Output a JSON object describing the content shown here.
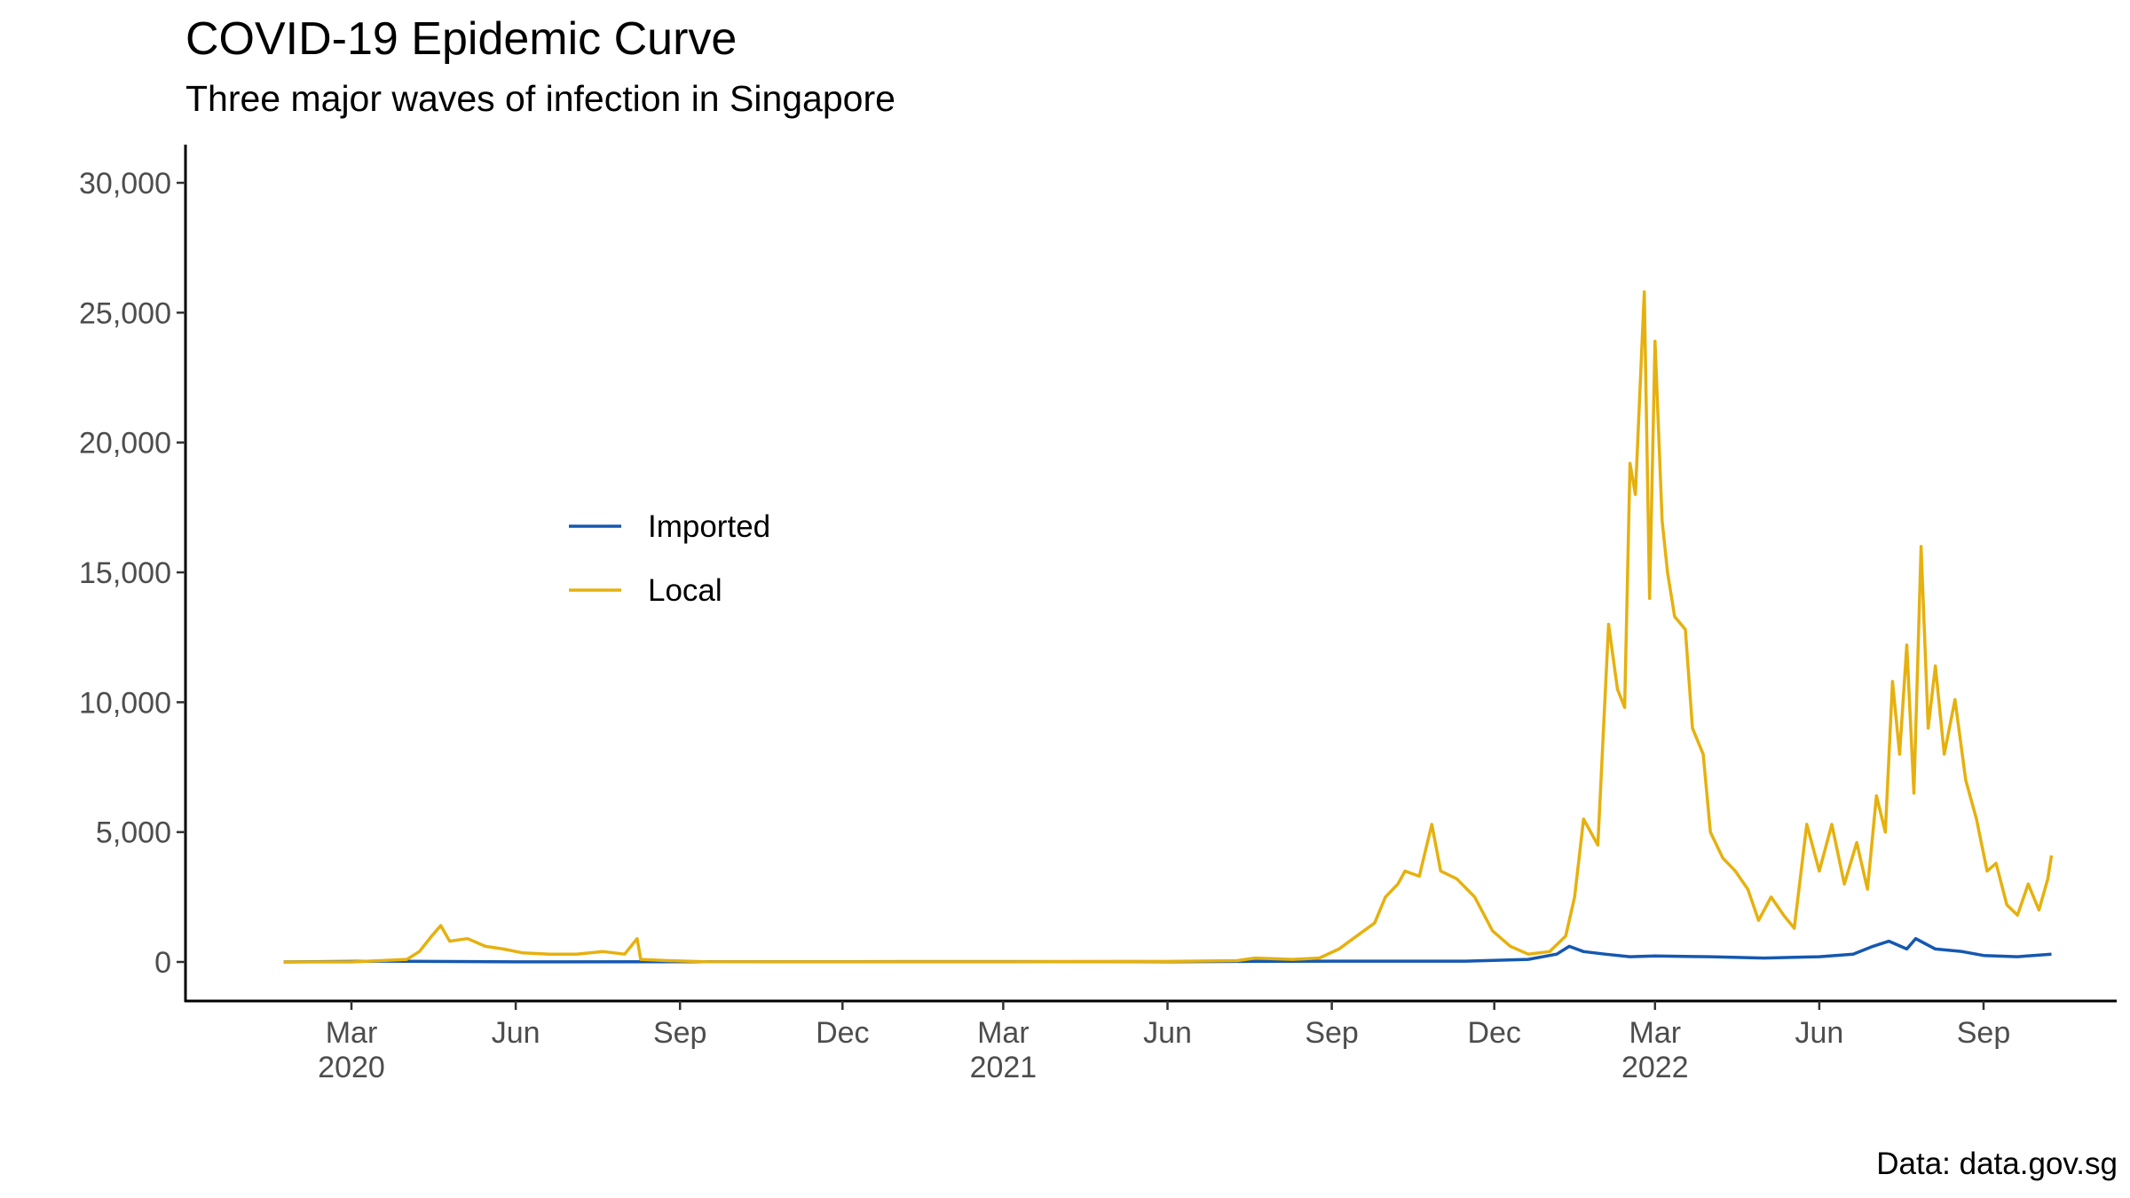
{
  "chart_data": {
    "type": "line",
    "title": "COVID-19 Epidemic Curve",
    "subtitle": "Three major waves of infection in Singapore",
    "caption": "Data: data.gov.sg",
    "xlabel": "",
    "ylabel": "",
    "ylim": [
      0,
      30000
    ],
    "xlim": [
      "2020-01-01",
      "2022-11-01"
    ],
    "grid": false,
    "legend_position": "inside-left",
    "y_ticks": [
      {
        "value": 0,
        "label": "0"
      },
      {
        "value": 5000,
        "label": "5,000"
      },
      {
        "value": 10000,
        "label": "10,000"
      },
      {
        "value": 15000,
        "label": "15,000"
      },
      {
        "value": 20000,
        "label": "20,000"
      },
      {
        "value": 25000,
        "label": "25,000"
      },
      {
        "value": 30000,
        "label": "30,000"
      }
    ],
    "x_ticks": [
      {
        "date": "2020-03-01",
        "month": "Mar",
        "year": "2020"
      },
      {
        "date": "2020-06-01",
        "month": "Jun",
        "year": ""
      },
      {
        "date": "2020-09-01",
        "month": "Sep",
        "year": ""
      },
      {
        "date": "2020-12-01",
        "month": "Dec",
        "year": ""
      },
      {
        "date": "2021-03-01",
        "month": "Mar",
        "year": "2021"
      },
      {
        "date": "2021-06-01",
        "month": "Jun",
        "year": ""
      },
      {
        "date": "2021-09-01",
        "month": "Sep",
        "year": ""
      },
      {
        "date": "2021-12-01",
        "month": "Dec",
        "year": ""
      },
      {
        "date": "2022-03-01",
        "month": "Mar",
        "year": "2022"
      },
      {
        "date": "2022-06-01",
        "month": "Jun",
        "year": ""
      },
      {
        "date": "2022-09-01",
        "month": "Sep",
        "year": ""
      }
    ],
    "series": [
      {
        "name": "Imported",
        "color": "#1558b0",
        "points": [
          [
            "2020-01-23",
            0
          ],
          [
            "2020-03-20",
            30
          ],
          [
            "2020-06-01",
            5
          ],
          [
            "2020-09-01",
            10
          ],
          [
            "2020-12-01",
            10
          ],
          [
            "2021-03-01",
            15
          ],
          [
            "2021-06-01",
            10
          ],
          [
            "2021-09-01",
            30
          ],
          [
            "2021-11-15",
            30
          ],
          [
            "2021-12-20",
            100
          ],
          [
            "2022-01-05",
            300
          ],
          [
            "2022-01-12",
            600
          ],
          [
            "2022-01-20",
            400
          ],
          [
            "2022-02-01",
            300
          ],
          [
            "2022-02-15",
            200
          ],
          [
            "2022-03-01",
            230
          ],
          [
            "2022-04-01",
            200
          ],
          [
            "2022-05-01",
            150
          ],
          [
            "2022-06-01",
            200
          ],
          [
            "2022-06-20",
            300
          ],
          [
            "2022-07-01",
            600
          ],
          [
            "2022-07-10",
            800
          ],
          [
            "2022-07-20",
            500
          ],
          [
            "2022-07-25",
            900
          ],
          [
            "2022-08-05",
            500
          ],
          [
            "2022-08-20",
            400
          ],
          [
            "2022-09-01",
            250
          ],
          [
            "2022-09-20",
            200
          ],
          [
            "2022-10-09",
            300
          ]
        ]
      },
      {
        "name": "Local",
        "color": "#e6b10e",
        "points": [
          [
            "2020-01-23",
            0
          ],
          [
            "2020-03-01",
            0
          ],
          [
            "2020-04-01",
            100
          ],
          [
            "2020-04-08",
            400
          ],
          [
            "2020-04-15",
            1000
          ],
          [
            "2020-04-20",
            1400
          ],
          [
            "2020-04-25",
            800
          ],
          [
            "2020-05-05",
            900
          ],
          [
            "2020-05-15",
            600
          ],
          [
            "2020-05-25",
            500
          ],
          [
            "2020-06-05",
            350
          ],
          [
            "2020-06-20",
            300
          ],
          [
            "2020-07-05",
            300
          ],
          [
            "2020-07-20",
            400
          ],
          [
            "2020-08-01",
            300
          ],
          [
            "2020-08-08",
            900
          ],
          [
            "2020-08-10",
            100
          ],
          [
            "2020-08-25",
            50
          ],
          [
            "2020-09-15",
            10
          ],
          [
            "2020-12-01",
            5
          ],
          [
            "2021-03-01",
            5
          ],
          [
            "2021-06-01",
            20
          ],
          [
            "2021-07-10",
            50
          ],
          [
            "2021-07-20",
            150
          ],
          [
            "2021-08-10",
            100
          ],
          [
            "2021-08-25",
            150
          ],
          [
            "2021-09-05",
            500
          ],
          [
            "2021-09-15",
            1000
          ],
          [
            "2021-09-25",
            1500
          ],
          [
            "2021-10-01",
            2500
          ],
          [
            "2021-10-08",
            3000
          ],
          [
            "2021-10-12",
            3500
          ],
          [
            "2021-10-20",
            3300
          ],
          [
            "2021-10-27",
            5300
          ],
          [
            "2021-11-01",
            3500
          ],
          [
            "2021-11-10",
            3200
          ],
          [
            "2021-11-20",
            2500
          ],
          [
            "2021-11-30",
            1200
          ],
          [
            "2021-12-10",
            600
          ],
          [
            "2021-12-20",
            300
          ],
          [
            "2022-01-01",
            400
          ],
          [
            "2022-01-10",
            1000
          ],
          [
            "2022-01-15",
            2500
          ],
          [
            "2022-01-20",
            5500
          ],
          [
            "2022-01-28",
            4500
          ],
          [
            "2022-02-03",
            13000
          ],
          [
            "2022-02-08",
            10500
          ],
          [
            "2022-02-12",
            9800
          ],
          [
            "2022-02-15",
            19200
          ],
          [
            "2022-02-18",
            18000
          ],
          [
            "2022-02-23",
            25800
          ],
          [
            "2022-02-26",
            14000
          ],
          [
            "2022-03-01",
            23900
          ],
          [
            "2022-03-05",
            17000
          ],
          [
            "2022-03-08",
            15000
          ],
          [
            "2022-03-12",
            13300
          ],
          [
            "2022-03-18",
            12800
          ],
          [
            "2022-03-22",
            9000
          ],
          [
            "2022-03-28",
            8000
          ],
          [
            "2022-04-01",
            5000
          ],
          [
            "2022-04-08",
            4000
          ],
          [
            "2022-04-15",
            3500
          ],
          [
            "2022-04-22",
            2800
          ],
          [
            "2022-04-28",
            1600
          ],
          [
            "2022-05-05",
            2500
          ],
          [
            "2022-05-12",
            1800
          ],
          [
            "2022-05-18",
            1300
          ],
          [
            "2022-05-25",
            5300
          ],
          [
            "2022-06-01",
            3500
          ],
          [
            "2022-06-08",
            5300
          ],
          [
            "2022-06-15",
            3000
          ],
          [
            "2022-06-22",
            4600
          ],
          [
            "2022-06-28",
            2800
          ],
          [
            "2022-07-03",
            6400
          ],
          [
            "2022-07-08",
            5000
          ],
          [
            "2022-07-12",
            10800
          ],
          [
            "2022-07-16",
            8000
          ],
          [
            "2022-07-20",
            12200
          ],
          [
            "2022-07-24",
            6500
          ],
          [
            "2022-07-28",
            16000
          ],
          [
            "2022-08-01",
            9000
          ],
          [
            "2022-08-05",
            11400
          ],
          [
            "2022-08-10",
            8000
          ],
          [
            "2022-08-16",
            10100
          ],
          [
            "2022-08-22",
            7000
          ],
          [
            "2022-08-28",
            5500
          ],
          [
            "2022-09-03",
            3500
          ],
          [
            "2022-09-08",
            3800
          ],
          [
            "2022-09-14",
            2200
          ],
          [
            "2022-09-20",
            1800
          ],
          [
            "2022-09-26",
            3000
          ],
          [
            "2022-10-02",
            2000
          ],
          [
            "2022-10-07",
            3200
          ],
          [
            "2022-10-09",
            4100
          ]
        ]
      }
    ]
  }
}
